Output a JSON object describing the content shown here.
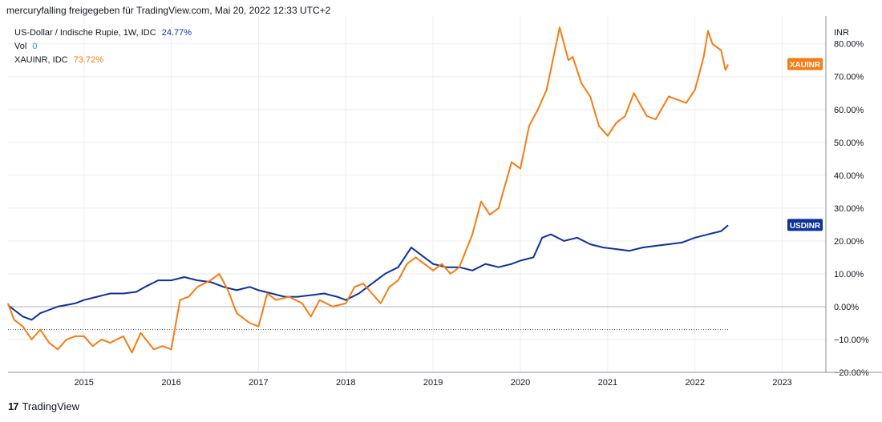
{
  "header": "mercuryfalling freigegeben für TradingView.com, Mai 20, 2022 12:33 UTC+2",
  "legend": {
    "main_label": "US-Dollar / Indische Rupie, 1W, IDC",
    "main_value": "24.77%",
    "vol_label": "Vol",
    "vol_value": "0",
    "compare_label": "XAUINR, IDC",
    "compare_value": "73.72%"
  },
  "footer": {
    "brand": "TradingView",
    "logo_glyph": "17"
  },
  "colors": {
    "usdinr": "#0c3299",
    "xauinr": "#f57c12",
    "grid": "#eceef2",
    "axis": "#8a8e99",
    "zero": "#b2b5be",
    "ref": "#434651"
  },
  "chart_data": {
    "type": "line",
    "yunit": "%",
    "ylim": [
      -20,
      87
    ],
    "xlim": [
      2014.13,
      2023.5
    ],
    "y_ticks": [
      "80.00%",
      "70.00%",
      "60.00%",
      "50.00%",
      "40.00%",
      "30.00%",
      "20.00%",
      "10.00%",
      "0.00%",
      "−10.00%",
      "−20.00%"
    ],
    "y_tick_values": [
      80,
      70,
      60,
      50,
      40,
      30,
      20,
      10,
      0,
      -10,
      -20
    ],
    "x_ticks": [
      "2015",
      "2016",
      "2017",
      "2018",
      "2019",
      "2020",
      "2021",
      "2022",
      "2023"
    ],
    "x_tick_values": [
      2015,
      2016,
      2017,
      2018,
      2019,
      2020,
      2021,
      2022,
      2023
    ],
    "axis_unit_label": "INR",
    "grid": true,
    "reference_line_value": -7,
    "series": [
      {
        "name": "USDINR",
        "badge": "USDINR",
        "x": [
          2014.13,
          2014.2,
          2014.3,
          2014.4,
          2014.5,
          2014.6,
          2014.7,
          2014.8,
          2014.9,
          2015.0,
          2015.15,
          2015.3,
          2015.45,
          2015.6,
          2015.7,
          2015.85,
          2016.0,
          2016.15,
          2016.3,
          2016.45,
          2016.6,
          2016.75,
          2016.9,
          2017.0,
          2017.15,
          2017.3,
          2017.45,
          2017.6,
          2017.75,
          2017.9,
          2018.0,
          2018.15,
          2018.3,
          2018.45,
          2018.6,
          2018.75,
          2018.85,
          2019.0,
          2019.15,
          2019.3,
          2019.45,
          2019.6,
          2019.75,
          2019.9,
          2020.0,
          2020.15,
          2020.25,
          2020.35,
          2020.5,
          2020.65,
          2020.8,
          2020.95,
          2021.1,
          2021.25,
          2021.4,
          2021.55,
          2021.7,
          2021.85,
          2022.0,
          2022.15,
          2022.3,
          2022.38
        ],
        "y": [
          0.5,
          -1,
          -3,
          -4,
          -2,
          -1,
          0,
          0.5,
          1,
          2,
          3,
          4,
          4,
          4.5,
          6,
          8,
          8,
          9,
          8,
          7.5,
          6,
          5,
          6,
          5,
          4,
          3,
          3,
          3.5,
          4,
          3,
          2,
          4,
          7,
          10,
          12,
          18,
          16,
          13,
          12,
          12,
          11,
          13,
          12,
          13,
          14,
          15,
          21,
          22,
          20,
          21,
          19,
          18,
          17.5,
          17,
          18,
          18.5,
          19,
          19.5,
          21,
          22,
          23,
          24.77
        ]
      },
      {
        "name": "XAUINR",
        "badge": "XAUINR",
        "x": [
          2014.13,
          2014.2,
          2014.3,
          2014.4,
          2014.5,
          2014.6,
          2014.7,
          2014.8,
          2014.9,
          2015.0,
          2015.1,
          2015.2,
          2015.3,
          2015.45,
          2015.55,
          2015.65,
          2015.8,
          2015.9,
          2016.0,
          2016.1,
          2016.2,
          2016.3,
          2016.45,
          2016.55,
          2016.65,
          2016.75,
          2016.9,
          2017.0,
          2017.1,
          2017.2,
          2017.35,
          2017.5,
          2017.6,
          2017.7,
          2017.85,
          2018.0,
          2018.1,
          2018.2,
          2018.3,
          2018.4,
          2018.5,
          2018.6,
          2018.7,
          2018.8,
          2018.9,
          2019.0,
          2019.1,
          2019.2,
          2019.3,
          2019.45,
          2019.55,
          2019.65,
          2019.75,
          2019.9,
          2020.0,
          2020.1,
          2020.2,
          2020.3,
          2020.45,
          2020.55,
          2020.6,
          2020.7,
          2020.8,
          2020.9,
          2021.0,
          2021.1,
          2021.2,
          2021.3,
          2021.45,
          2021.55,
          2021.7,
          2021.8,
          2021.9,
          2022.0,
          2022.1,
          2022.15,
          2022.2,
          2022.3,
          2022.35,
          2022.38
        ],
        "y": [
          1,
          -4,
          -6,
          -10,
          -7,
          -11,
          -13,
          -10,
          -9,
          -9,
          -12,
          -10,
          -11,
          -9,
          -14,
          -8,
          -13,
          -12,
          -13,
          2,
          3,
          6,
          8,
          10,
          5,
          -2,
          -5,
          -6,
          4,
          2,
          3,
          1,
          -3,
          2,
          0,
          1,
          6,
          7,
          4,
          1,
          6,
          8,
          13,
          15,
          13,
          11,
          13,
          10,
          12,
          22,
          32,
          28,
          30,
          44,
          42,
          55,
          60,
          66,
          85,
          75,
          76,
          68,
          64,
          55,
          52,
          56,
          58,
          65,
          58,
          57,
          64,
          63,
          62,
          66,
          76,
          84,
          80,
          78,
          72,
          73.72
        ]
      }
    ]
  }
}
